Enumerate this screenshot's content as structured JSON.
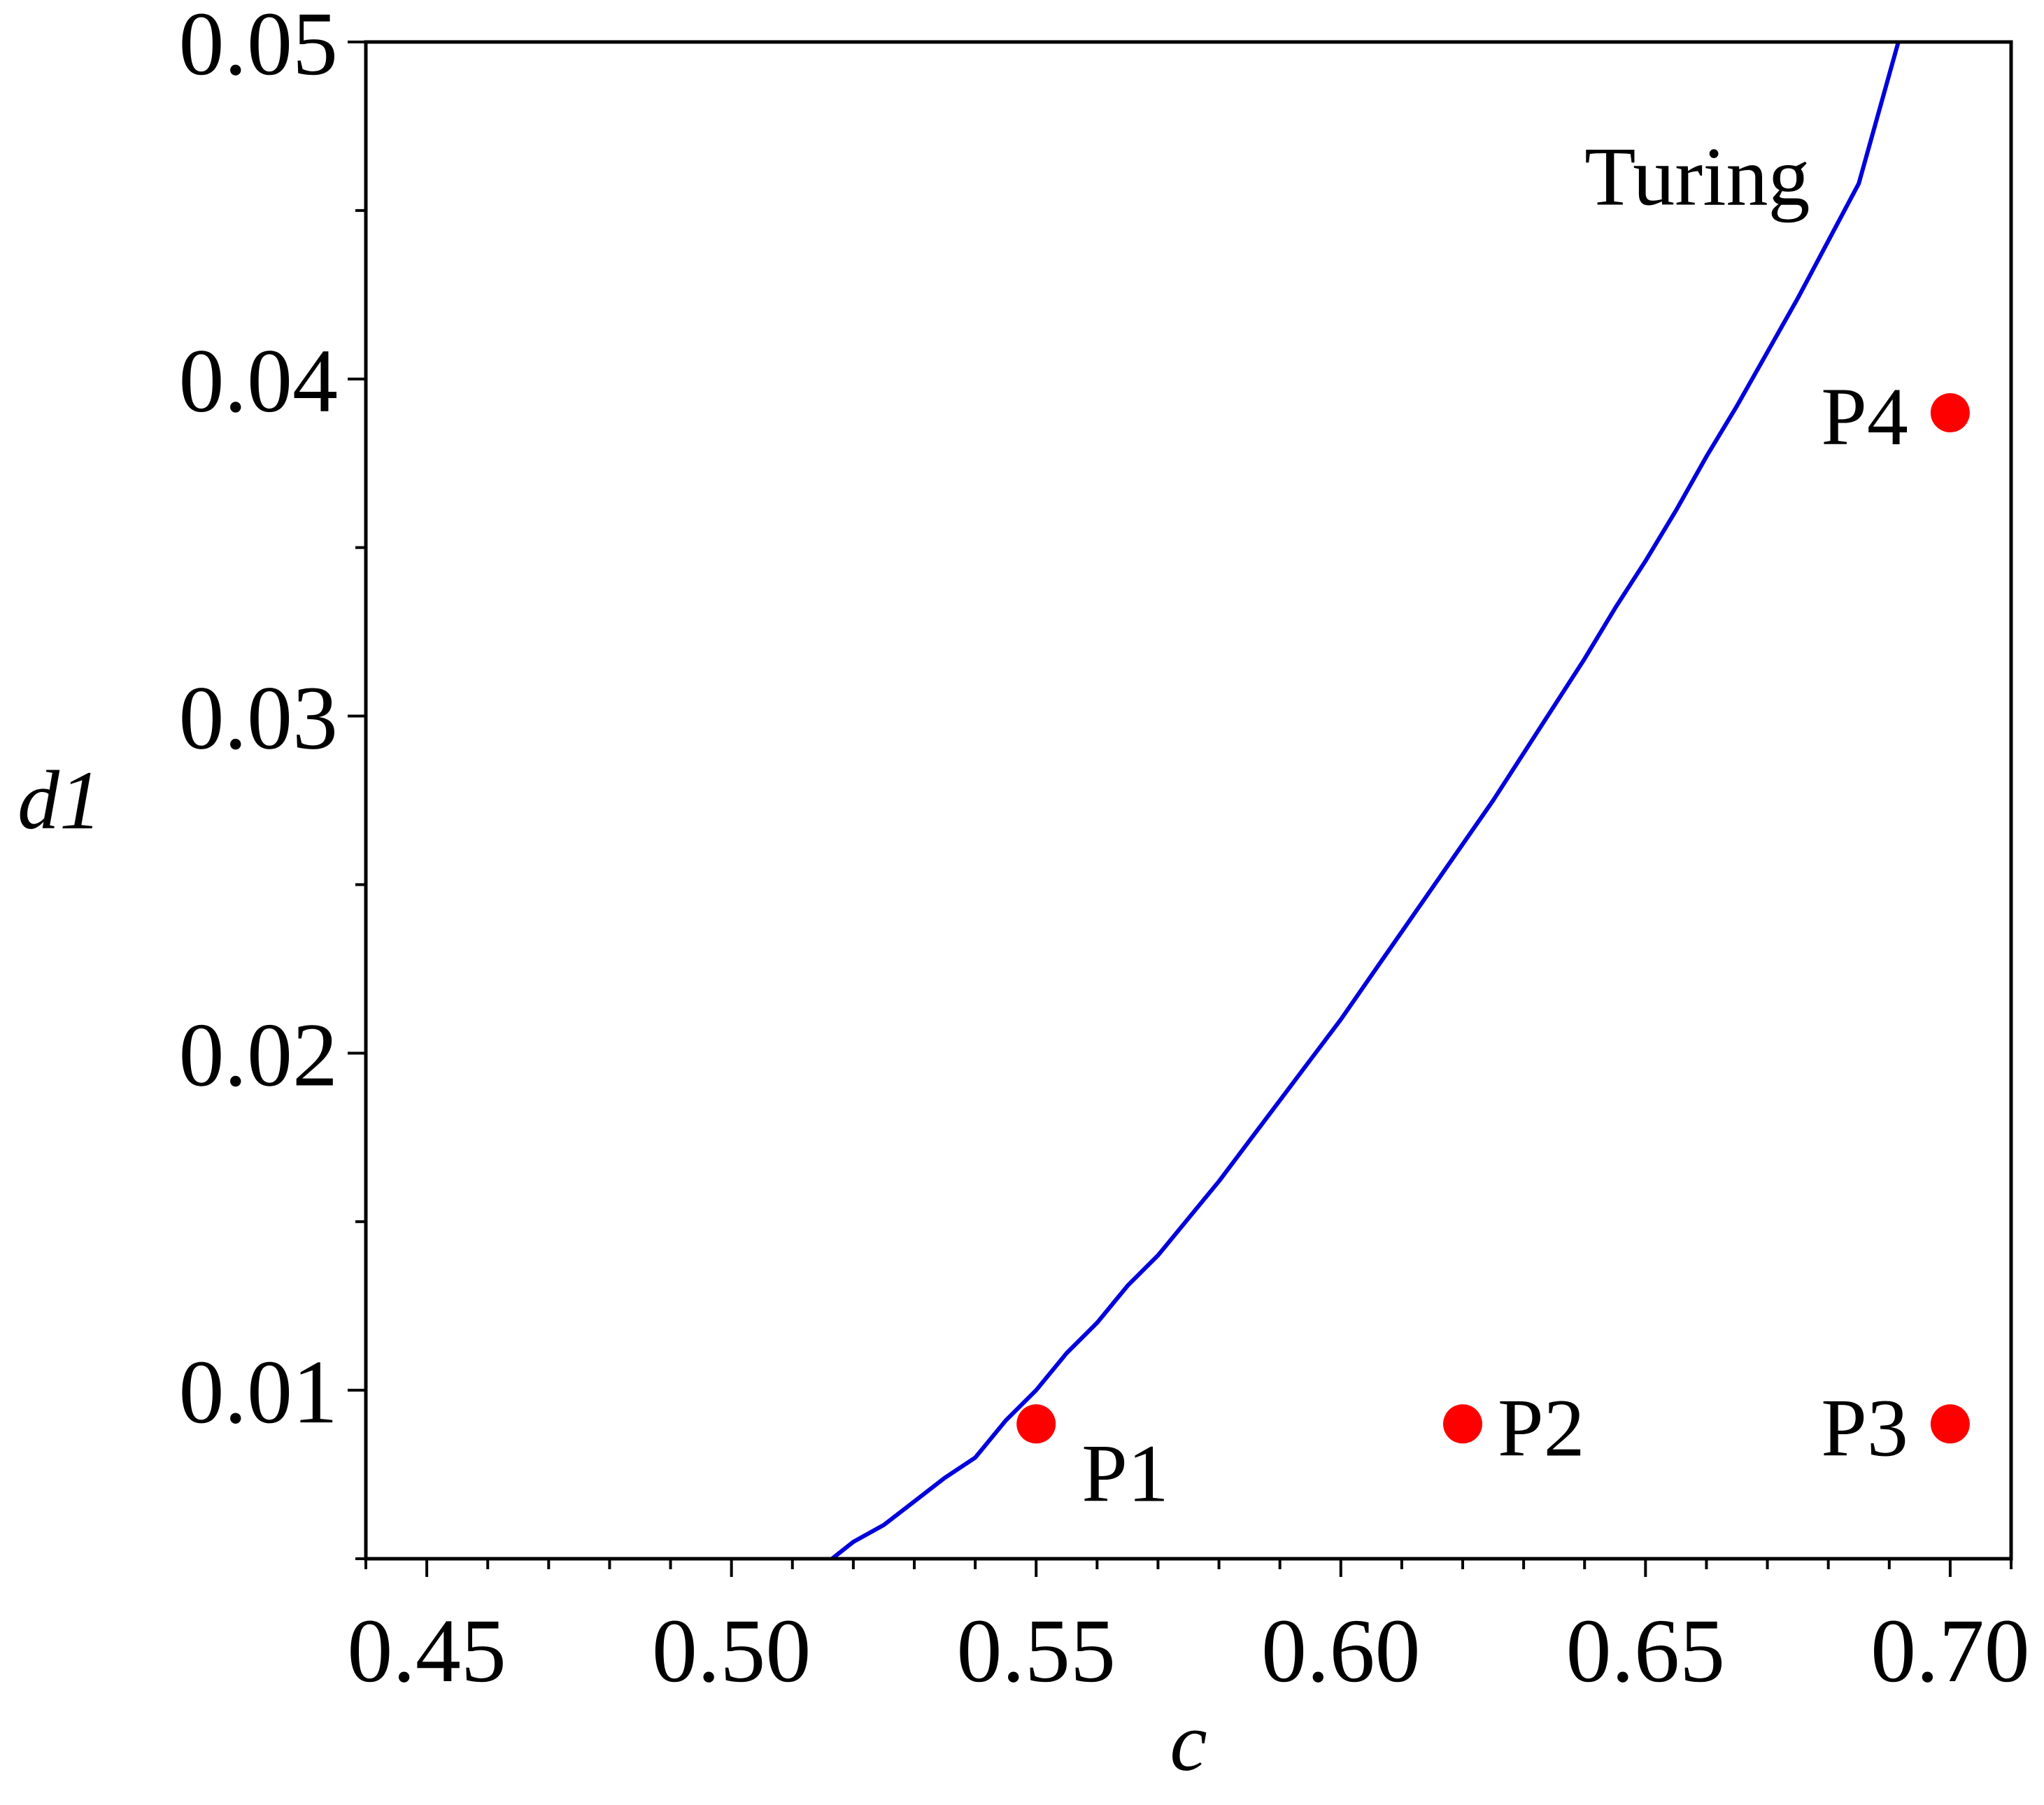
{
  "chart_data": {
    "type": "line",
    "title": "",
    "xlabel": "c",
    "ylabel": "d1",
    "xlim": [
      0.44,
      0.71
    ],
    "ylim": [
      0.005,
      0.05
    ],
    "x_ticks": [
      0.45,
      0.5,
      0.55,
      0.6,
      0.65,
      0.7
    ],
    "x_tick_labels": [
      "0.45",
      "0.50",
      "0.55",
      "0.60",
      "0.65",
      "0.70"
    ],
    "y_ticks": [
      0.01,
      0.02,
      0.03,
      0.04,
      0.05
    ],
    "y_tick_labels": [
      "0.01",
      "0.02",
      "0.03",
      "0.04",
      "0.05"
    ],
    "x_minor_step": 0.01,
    "y_minor_step": 0.005,
    "grid": false,
    "series": [
      {
        "name": "Turing",
        "color": "#0000dd",
        "x": [
          0.5165,
          0.52,
          0.525,
          0.53,
          0.535,
          0.54,
          0.545,
          0.55,
          0.555,
          0.56,
          0.565,
          0.57,
          0.575,
          0.58,
          0.585,
          0.59,
          0.595,
          0.6,
          0.605,
          0.61,
          0.615,
          0.62,
          0.625,
          0.63,
          0.635,
          0.64,
          0.645,
          0.65,
          0.655,
          0.66,
          0.665,
          0.67,
          0.675,
          0.68,
          0.685,
          0.6915
        ],
        "y": [
          0.005,
          0.0055,
          0.006,
          0.0067,
          0.0074,
          0.008,
          0.0091,
          0.01,
          0.0111,
          0.012,
          0.0131,
          0.014,
          0.0151,
          0.0162,
          0.0174,
          0.0186,
          0.0198,
          0.021,
          0.0223,
          0.0236,
          0.0249,
          0.0262,
          0.0275,
          0.0289,
          0.0303,
          0.0317,
          0.0332,
          0.0346,
          0.0361,
          0.0377,
          0.0392,
          0.0408,
          0.0424,
          0.0441,
          0.0458,
          0.05
        ]
      }
    ],
    "points": [
      {
        "label": "P1",
        "x": 0.55,
        "y": 0.009
      },
      {
        "label": "P2",
        "x": 0.62,
        "y": 0.009
      },
      {
        "label": "P3",
        "x": 0.7,
        "y": 0.009
      },
      {
        "label": "P4",
        "x": 0.7,
        "y": 0.039
      }
    ],
    "point_color": "#ff0000",
    "annotations": [
      {
        "text": "Turing",
        "x": 0.6585,
        "y": 0.046
      }
    ]
  }
}
